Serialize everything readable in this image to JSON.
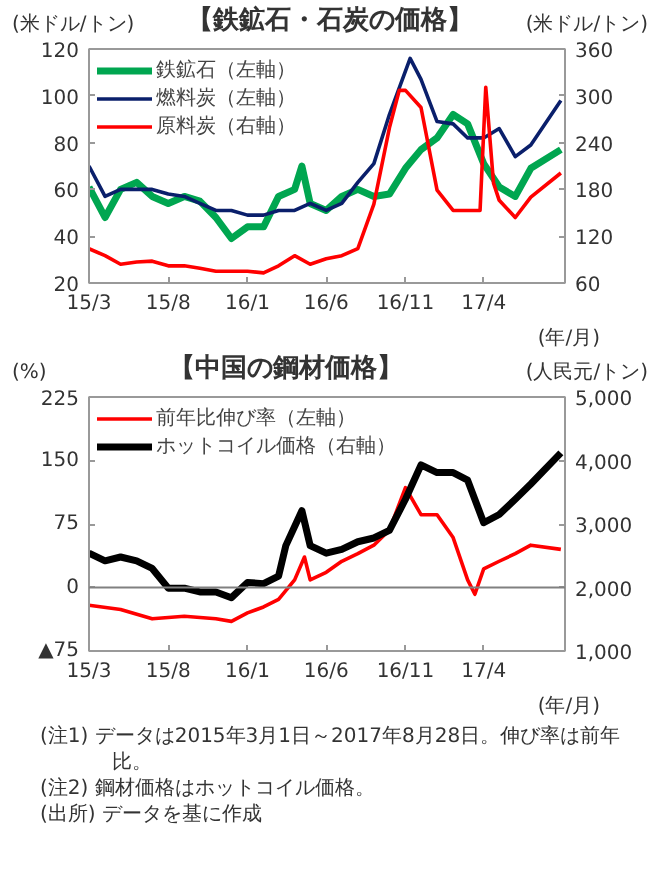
{
  "chart_data": [
    {
      "type": "line",
      "title": "【鉄鉱石・石炭の価格】",
      "ylabel": "(米ドル/トン)",
      "y2label": "(米ドル/トン)",
      "xlabel": "(年/月)",
      "xlim": [
        "2015-03-01",
        "2017-09-05"
      ],
      "xticks": [
        {
          "value": "2015-03-01",
          "label": "15/3"
        },
        {
          "value": "2015-08-01",
          "label": "15/8"
        },
        {
          "value": "2016-01-01",
          "label": "16/1"
        },
        {
          "value": "2016-06-01",
          "label": "16/6"
        },
        {
          "value": "2016-11-01",
          "label": "16/11"
        },
        {
          "value": "2017-04-01",
          "label": "17/4"
        }
      ],
      "ylim": [
        20,
        120
      ],
      "yticks": [
        20,
        40,
        60,
        80,
        100,
        120
      ],
      "y2lim": [
        60,
        360
      ],
      "y2ticks": [
        60,
        120,
        180,
        240,
        300,
        360
      ],
      "legend": "top left",
      "grid": false,
      "series": [
        {
          "name": "鉄鉱石（左軸）",
          "color": "#00a650",
          "x": [
            "2015-03-01",
            "2015-04-01",
            "2015-05-01",
            "2015-06-01",
            "2015-07-01",
            "2015-08-01",
            "2015-09-01",
            "2015-10-01",
            "2015-11-01",
            "2015-12-01",
            "2016-01-01",
            "2016-02-01",
            "2016-03-01",
            "2016-04-01",
            "2016-04-15",
            "2016-05-01",
            "2016-06-01",
            "2016-07-01",
            "2016-08-01",
            "2016-09-01",
            "2016-10-01",
            "2016-11-01",
            "2016-12-01",
            "2017-01-01",
            "2017-02-01",
            "2017-03-01",
            "2017-04-01",
            "2017-05-01",
            "2017-06-01",
            "2017-07-01",
            "2017-08-28"
          ],
          "values": [
            61,
            48,
            60,
            63,
            57,
            54,
            57,
            55,
            48,
            39,
            44,
            44,
            57,
            60,
            70,
            54,
            51,
            57,
            60,
            57,
            58,
            69,
            77,
            82,
            92,
            88,
            71,
            61,
            57,
            69,
            77
          ]
        },
        {
          "name": "燃料炭（左軸）",
          "color": "#0a1f6b",
          "x": [
            "2015-03-01",
            "2015-04-01",
            "2015-05-01",
            "2015-06-01",
            "2015-07-01",
            "2015-08-01",
            "2015-09-01",
            "2015-10-01",
            "2015-11-01",
            "2015-12-01",
            "2016-01-01",
            "2016-02-01",
            "2016-03-01",
            "2016-04-01",
            "2016-05-01",
            "2016-06-01",
            "2016-07-01",
            "2016-08-01",
            "2016-09-01",
            "2016-10-01",
            "2016-11-10",
            "2016-12-01",
            "2017-01-01",
            "2017-02-01",
            "2017-03-01",
            "2017-04-01",
            "2017-05-01",
            "2017-06-01",
            "2017-07-01",
            "2017-08-28"
          ],
          "values": [
            70,
            57,
            60,
            60,
            60,
            58,
            57,
            54,
            51,
            51,
            49,
            49,
            51,
            51,
            54,
            51,
            54,
            63,
            71,
            92,
            116,
            107,
            89,
            88,
            82,
            82,
            86,
            74,
            79,
            98
          ]
        },
        {
          "name": "原料炭（右軸）",
          "color": "#ff0000",
          "axis": "y2",
          "x": [
            "2015-03-01",
            "2015-04-01",
            "2015-05-01",
            "2015-06-01",
            "2015-07-01",
            "2015-08-01",
            "2015-09-01",
            "2015-10-01",
            "2015-11-01",
            "2015-12-01",
            "2016-01-01",
            "2016-02-01",
            "2016-03-01",
            "2016-04-01",
            "2016-05-01",
            "2016-06-01",
            "2016-07-01",
            "2016-08-01",
            "2016-09-01",
            "2016-10-01",
            "2016-10-20",
            "2016-11-01",
            "2016-12-01",
            "2017-01-01",
            "2017-02-01",
            "2017-03-01",
            "2017-03-25",
            "2017-04-05",
            "2017-04-20",
            "2017-05-01",
            "2017-06-01",
            "2017-07-01",
            "2017-08-28"
          ],
          "values": [
            104,
            95,
            84,
            87,
            88,
            82,
            82,
            79,
            75,
            75,
            75,
            73,
            82,
            95,
            84,
            91,
            95,
            104,
            161,
            259,
            307,
            307,
            285,
            179,
            153,
            153,
            153,
            311,
            188,
            166,
            144,
            170,
            201
          ]
        }
      ]
    },
    {
      "type": "line",
      "title": "【中国の鋼材価格】",
      "ylabel": "(%)",
      "y2label": "(人民元/トン)",
      "xlabel": "(年/月)",
      "xlim": [
        "2015-03-01",
        "2017-09-05"
      ],
      "xticks": [
        {
          "value": "2015-03-01",
          "label": "15/3"
        },
        {
          "value": "2015-08-01",
          "label": "15/8"
        },
        {
          "value": "2016-01-01",
          "label": "16/1"
        },
        {
          "value": "2016-06-01",
          "label": "16/6"
        },
        {
          "value": "2016-11-01",
          "label": "16/11"
        },
        {
          "value": "2017-04-01",
          "label": "17/4"
        }
      ],
      "ylim": [
        -75,
        225
      ],
      "yticks": [
        {
          "value": -75,
          "label": "▲75"
        },
        0,
        75,
        150,
        225
      ],
      "y2lim": [
        1000,
        5000
      ],
      "y2ticks": [
        {
          "value": 1000,
          "label": "1,000"
        },
        {
          "value": 2000,
          "label": "2,000"
        },
        {
          "value": 3000,
          "label": "3,000"
        },
        {
          "value": 4000,
          "label": "4,000"
        },
        {
          "value": 5000,
          "label": "5,000"
        }
      ],
      "legend": "top left",
      "grid": false,
      "ref_lines": [
        {
          "axis": "y",
          "value": 0,
          "color": "#808080"
        }
      ],
      "series": [
        {
          "name": "前年比伸び率（左軸）",
          "color": "#ff0000",
          "x": [
            "2015-03-01",
            "2015-05-01",
            "2015-07-01",
            "2015-09-01",
            "2015-11-01",
            "2015-12-01",
            "2016-01-01",
            "2016-02-01",
            "2016-03-01",
            "2016-04-01",
            "2016-04-20",
            "2016-05-01",
            "2016-06-01",
            "2016-07-01",
            "2016-08-01",
            "2016-09-01",
            "2016-10-01",
            "2016-11-01",
            "2016-12-01",
            "2017-01-01",
            "2017-02-01",
            "2017-03-01",
            "2017-03-15",
            "2017-04-01",
            "2017-05-01",
            "2017-06-01",
            "2017-07-01",
            "2017-08-28"
          ],
          "values": [
            -21,
            -26,
            -37,
            -34,
            -37,
            -40,
            -30,
            -23,
            -14,
            9,
            36,
            9,
            18,
            31,
            40,
            50,
            68,
            118,
            86,
            86,
            59,
            9,
            -8,
            22,
            31,
            40,
            50,
            45
          ]
        },
        {
          "name": "ホットコイル価格（右軸）",
          "color": "#000000",
          "axis": "y2",
          "x": [
            "2015-03-01",
            "2015-04-01",
            "2015-05-01",
            "2015-06-01",
            "2015-07-01",
            "2015-08-01",
            "2015-09-01",
            "2015-10-01",
            "2015-11-01",
            "2015-12-01",
            "2016-01-01",
            "2016-02-01",
            "2016-03-01",
            "2016-03-15",
            "2016-04-15",
            "2016-05-01",
            "2016-06-01",
            "2016-07-01",
            "2016-08-01",
            "2016-09-01",
            "2016-10-01",
            "2016-11-01",
            "2016-12-01",
            "2017-01-01",
            "2017-02-01",
            "2017-03-01",
            "2017-04-01",
            "2017-05-01",
            "2017-06-01",
            "2017-07-01",
            "2017-08-28"
          ],
          "values": [
            2540,
            2420,
            2480,
            2420,
            2300,
            1990,
            1990,
            1930,
            1930,
            1840,
            2080,
            2060,
            2180,
            2660,
            3210,
            2660,
            2540,
            2600,
            2720,
            2780,
            2900,
            3390,
            3930,
            3810,
            3810,
            3690,
            3020,
            3150,
            3390,
            3630,
            4120
          ]
        }
      ],
      "annotations": [
        "(注1) データは2015年3月1日～2017年8月28日。伸び率は前年比。",
        "(注2) 鋼材価格はホットコイル価格。",
        "(出所) データを基に作成"
      ]
    }
  ]
}
